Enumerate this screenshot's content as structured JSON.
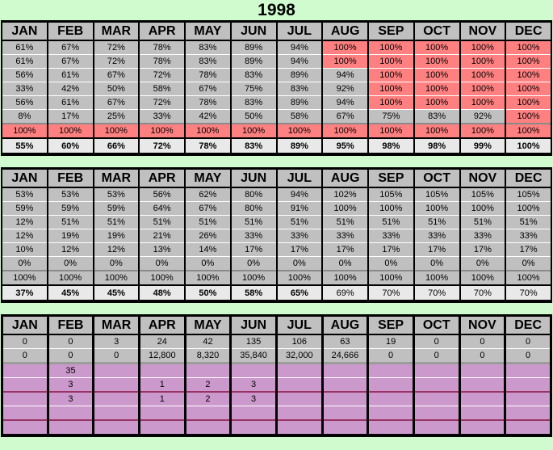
{
  "title": "1998",
  "months": [
    "JAN",
    "FEB",
    "MAR",
    "APR",
    "MAY",
    "JUN",
    "JUL",
    "AUG",
    "SEP",
    "OCT",
    "NOV",
    "DEC"
  ],
  "colors": {
    "background": "#cffbcf",
    "cell_gray": "#c0c0c0",
    "cell_red": "#ff8080",
    "cell_purple": "#cc99cc",
    "summary_background": "#e9e9e9",
    "maroon_separator": "#993366",
    "border_black": "#000000"
  },
  "tables": [
    {
      "id": "percent-table-top",
      "rows": [
        {
          "cells": [
            "61%",
            "67%",
            "72%",
            "78%",
            "83%",
            "89%",
            "94%",
            "100%",
            "100%",
            "100%",
            "100%",
            "100%"
          ],
          "red_start": 7,
          "sep": "none"
        },
        {
          "cells": [
            "61%",
            "67%",
            "72%",
            "78%",
            "83%",
            "89%",
            "94%",
            "100%",
            "100%",
            "100%",
            "100%",
            "100%"
          ],
          "red_start": 7,
          "sep": "white"
        },
        {
          "cells": [
            "56%",
            "61%",
            "67%",
            "72%",
            "78%",
            "83%",
            "89%",
            "94%",
            "100%",
            "100%",
            "100%",
            "100%"
          ],
          "red_start": 8,
          "sep": "white"
        },
        {
          "cells": [
            "33%",
            "42%",
            "50%",
            "58%",
            "67%",
            "75%",
            "83%",
            "92%",
            "100%",
            "100%",
            "100%",
            "100%"
          ],
          "red_start": 8,
          "sep": "white"
        },
        {
          "cells": [
            "56%",
            "61%",
            "67%",
            "72%",
            "78%",
            "83%",
            "89%",
            "94%",
            "100%",
            "100%",
            "100%",
            "100%"
          ],
          "red_start": 8,
          "sep": "white"
        },
        {
          "cells": [
            "8%",
            "17%",
            "25%",
            "33%",
            "42%",
            "50%",
            "58%",
            "67%",
            "75%",
            "83%",
            "92%",
            "100%"
          ],
          "red_start": 11,
          "sep": "white"
        },
        {
          "cells": [
            "100%",
            "100%",
            "100%",
            "100%",
            "100%",
            "100%",
            "100%",
            "100%",
            "100%",
            "100%",
            "100%",
            "100%"
          ],
          "red_start": 0,
          "sep": "gray"
        }
      ],
      "summary": {
        "cells": [
          "55%",
          "60%",
          "66%",
          "72%",
          "78%",
          "83%",
          "89%",
          "95%",
          "98%",
          "98%",
          "99%",
          "100%"
        ],
        "bold": [
          true,
          true,
          true,
          true,
          true,
          true,
          true,
          true,
          true,
          true,
          true,
          true
        ]
      }
    },
    {
      "id": "percent-table-middle",
      "rows": [
        {
          "cells": [
            "53%",
            "53%",
            "53%",
            "56%",
            "62%",
            "80%",
            "94%",
            "102%",
            "105%",
            "105%",
            "105%",
            "105%"
          ],
          "sep": "none"
        },
        {
          "cells": [
            "59%",
            "59%",
            "59%",
            "64%",
            "67%",
            "80%",
            "91%",
            "100%",
            "100%",
            "100%",
            "100%",
            "100%"
          ],
          "sep": "white"
        },
        {
          "cells": [
            "12%",
            "51%",
            "51%",
            "51%",
            "51%",
            "51%",
            "51%",
            "51%",
            "51%",
            "51%",
            "51%",
            "51%"
          ],
          "sep": "white"
        },
        {
          "cells": [
            "12%",
            "19%",
            "19%",
            "21%",
            "26%",
            "33%",
            "33%",
            "33%",
            "33%",
            "33%",
            "33%",
            "33%"
          ],
          "sep": "white"
        },
        {
          "cells": [
            "10%",
            "12%",
            "12%",
            "13%",
            "14%",
            "17%",
            "17%",
            "17%",
            "17%",
            "17%",
            "17%",
            "17%"
          ],
          "sep": "white"
        },
        {
          "cells": [
            "0%",
            "0%",
            "0%",
            "0%",
            "0%",
            "0%",
            "0%",
            "0%",
            "0%",
            "0%",
            "0%",
            "0%"
          ],
          "sep": "white"
        },
        {
          "cells": [
            "100%",
            "100%",
            "100%",
            "100%",
            "100%",
            "100%",
            "100%",
            "100%",
            "100%",
            "100%",
            "100%",
            "100%"
          ],
          "sep": "gray"
        }
      ],
      "summary": {
        "cells": [
          "37%",
          "45%",
          "45%",
          "48%",
          "50%",
          "58%",
          "65%",
          "69%",
          "70%",
          "70%",
          "70%",
          "70%"
        ],
        "bold": [
          true,
          true,
          true,
          true,
          true,
          true,
          true,
          false,
          false,
          false,
          false,
          false
        ]
      }
    },
    {
      "id": "counts-table-bottom",
      "wide_columns": true,
      "rows": [
        {
          "cells": [
            "0",
            "0",
            "3",
            "24",
            "42",
            "135",
            "106",
            "63",
            "19",
            "0",
            "0",
            "0"
          ],
          "style": "gray",
          "sep": "none"
        },
        {
          "cells": [
            "0",
            "0",
            "0",
            "12,800",
            "8,320",
            "35,840",
            "32,000",
            "24,666",
            "0",
            "0",
            "0",
            "0"
          ],
          "style": "gray",
          "sep": "white"
        },
        {
          "cells": [
            "",
            "35",
            "",
            "",
            "",
            "",
            "",
            "",
            "",
            "",
            "",
            ""
          ],
          "style": "purple",
          "sep": "graythick"
        },
        {
          "cells": [
            "",
            "3",
            "",
            "1",
            "2",
            "3",
            "",
            "",
            "",
            "",
            "",
            ""
          ],
          "style": "purple",
          "sep": "white"
        },
        {
          "cells": [
            "",
            "3",
            "",
            "1",
            "2",
            "3",
            "",
            "",
            "",
            "",
            "",
            ""
          ],
          "style": "purple",
          "sep": "maroon"
        },
        {
          "cells": [
            "",
            "",
            "",
            "",
            "",
            "",
            "",
            "",
            "",
            "",
            "",
            ""
          ],
          "style": "purple",
          "sep": "white"
        },
        {
          "cells": [
            "",
            "",
            "",
            "",
            "",
            "",
            "",
            "",
            "",
            "",
            "",
            ""
          ],
          "style": "purple",
          "sep": "maroon"
        }
      ]
    }
  ]
}
